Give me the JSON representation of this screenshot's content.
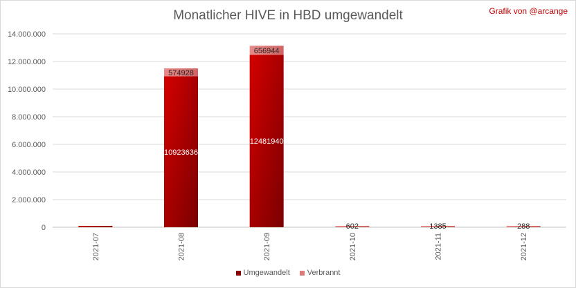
{
  "header": {
    "title": "Monatlicher HIVE in HBD umgewandelt",
    "credit": "Grafik von @arcange"
  },
  "chart_data": {
    "type": "bar",
    "stacked": true,
    "title": "Monatlicher HIVE in HBD umgewandelt",
    "categories": [
      "2021-07",
      "2021-08",
      "2021-09",
      "2021-10",
      "2021-11",
      "2021-12"
    ],
    "series": [
      {
        "name": "Umgewandelt",
        "color": "#b00000",
        "values": [
          80000,
          10923636,
          12481940,
          0,
          0,
          0
        ],
        "labels": [
          "",
          "10923636",
          "12481940",
          "",
          "",
          ""
        ]
      },
      {
        "name": "Verbrannt",
        "color": "#e07a7a",
        "values": [
          0,
          574928,
          656944,
          602,
          1385,
          288
        ],
        "labels": [
          "",
          "574928",
          "656944",
          "602",
          "1385",
          "288"
        ]
      }
    ],
    "y_ticks": [
      "0",
      "2.000.000",
      "4.000.000",
      "6.000.000",
      "8.000.000",
      "10.000.000",
      "12.000.000",
      "14.000.000"
    ],
    "ylim": [
      0,
      14000000
    ],
    "grid": true,
    "legend_position": "bottom"
  }
}
